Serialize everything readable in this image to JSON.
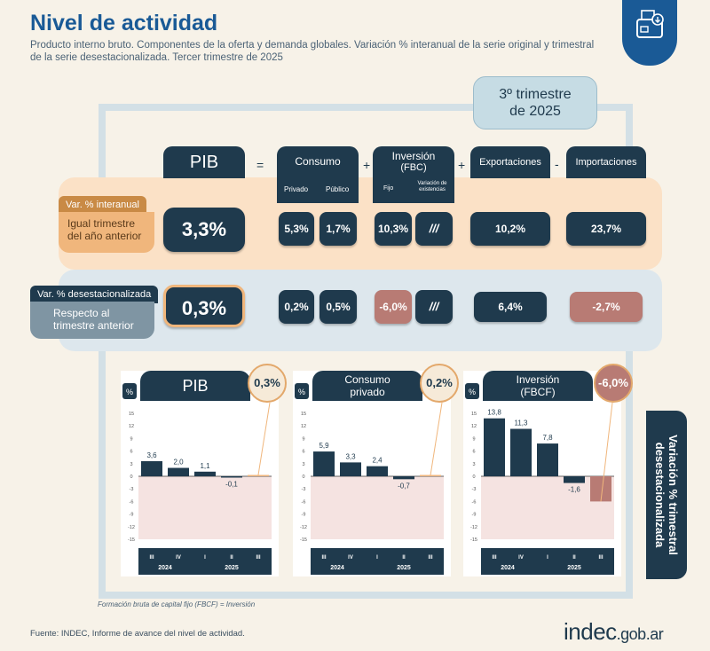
{
  "header": {
    "title": "Nivel de actividad",
    "subtitle": "Producto interno bruto. Componentes de la oferta y demanda globales. Variación % interanual de la serie original y trimestral de la serie desestacionalizada. Tercer trimestre de 2025",
    "quarter_line1": "3º trimestre",
    "quarter_line2": "de 2025"
  },
  "table": {
    "cols": {
      "pib": "PIB",
      "consumo": "Consumo",
      "privado": "Privado",
      "publico": "Público",
      "inversion1": "Inversión",
      "inversion2": "(FBC)",
      "fijo": "Fijo",
      "existencias": "Variación de existencias",
      "exportaciones": "Exportaciones",
      "importaciones": "Importaciones"
    },
    "ops": {
      "eq": "=",
      "plus1": "+",
      "plus2": "+",
      "minus": "-"
    },
    "row_yoy": {
      "tab": "Var. % interanual",
      "line1": "Igual trimestre",
      "line2": "del año anterior",
      "pib": "3,3%",
      "privado": "5,3%",
      "publico": "1,7%",
      "fijo": "10,3%",
      "existencias": "///",
      "export": "10,2%",
      "import": "23,7%"
    },
    "row_qoq": {
      "tab": "Var. % desestacionalizada",
      "line1": "Respecto al",
      "line2": "trimestre anterior",
      "pib": "0,3%",
      "privado": "0,2%",
      "publico": "0,5%",
      "fijo": "-6,0%",
      "existencias": "///",
      "export": "6,4%",
      "import": "-2,7%"
    }
  },
  "chart_data": [
    {
      "type": "bar",
      "title": "PIB",
      "highlight": "0,3%",
      "ylabel": "%",
      "ylim": [
        -15,
        15
      ],
      "yticks": [
        "15",
        "12",
        "9",
        "6",
        "3",
        "0",
        "-3",
        "-6",
        "-9",
        "-12",
        "-15"
      ],
      "categories": [
        "III",
        "IV",
        "I",
        "II",
        "III"
      ],
      "years": [
        "2024",
        "2025"
      ],
      "values": [
        3.6,
        2.0,
        1.1,
        -0.1,
        0.3
      ],
      "labels": [
        "3,6",
        "2,0",
        "1,1",
        "-0,1",
        ""
      ]
    },
    {
      "type": "bar",
      "title": "Consumo privado",
      "title_line1": "Consumo",
      "title_line2": "privado",
      "highlight": "0,2%",
      "ylabel": "%",
      "ylim": [
        -15,
        15
      ],
      "yticks": [
        "15",
        "12",
        "9",
        "6",
        "3",
        "0",
        "-3",
        "-6",
        "-9",
        "-12",
        "-15"
      ],
      "categories": [
        "III",
        "IV",
        "I",
        "II",
        "III"
      ],
      "years": [
        "2024",
        "2025"
      ],
      "values": [
        5.9,
        3.3,
        2.4,
        -0.7,
        0.2
      ],
      "labels": [
        "5,9",
        "3,3",
        "2,4",
        "-0,7",
        ""
      ]
    },
    {
      "type": "bar",
      "title": "Inversión (FBCF)",
      "title_line1": "Inversión",
      "title_line2": "(FBCF)",
      "highlight": "-6,0%",
      "ylabel": "%",
      "ylim": [
        -15,
        15
      ],
      "yticks": [
        "15",
        "12",
        "9",
        "6",
        "3",
        "0",
        "-3",
        "-6",
        "-9",
        "-12",
        "-15"
      ],
      "categories": [
        "III",
        "IV",
        "I",
        "II",
        "III"
      ],
      "years": [
        "2024",
        "2025"
      ],
      "values": [
        13.8,
        11.3,
        7.8,
        -1.6,
        -6.0
      ],
      "labels": [
        "13,8",
        "11,3",
        "7,8",
        "-1,6",
        ""
      ]
    }
  ],
  "side_label_line1": "Variación % trimestral",
  "side_label_line2": "desestacionalizada",
  "footnote": "Formación bruta de capital fijo (FBCF) = Inversión",
  "source": "Fuente: INDEC, Informe de avance del nivel de actividad.",
  "brand_main": "indec",
  "brand_tld": ".gob.ar",
  "colors": {
    "navy": "#1f3a4d",
    "blue": "#1a5a96",
    "orange": "#f0b67c",
    "negative": "#b87b74",
    "neg_zone": "#f5e3e1"
  }
}
